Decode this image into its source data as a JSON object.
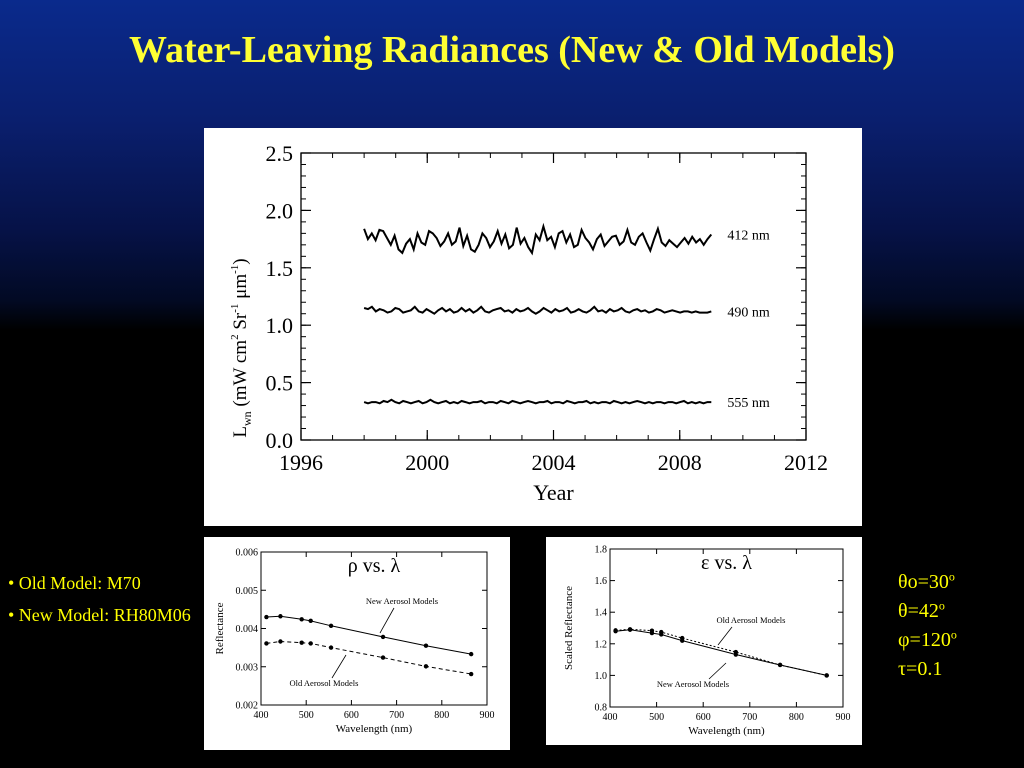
{
  "slide": {
    "title": "Water-Leaving Radiances (New & Old Models)",
    "notes": [
      "• Old Model: M70",
      "• New Model: RH80M06"
    ],
    "params": [
      {
        "text": "θo=30",
        "sup": "o"
      },
      {
        "text": "θ=42",
        "sup": "o"
      },
      {
        "text": "φ=120",
        "sup": "o"
      },
      {
        "text": "τ=0.1",
        "sup": ""
      }
    ]
  },
  "colors": {
    "title": "#ffff33",
    "text": "#ffff00",
    "background_top": "#0a2a8c",
    "background_bottom": "#000000"
  },
  "chart_data": [
    {
      "type": "line",
      "xlabel": "Year",
      "ylabel_parts": {
        "L": "L",
        "sub": "wn",
        "unit_a": " (mW cm",
        "unit_b": " Sr",
        "unit_c": " μm",
        "close": ")",
        "exp2": "2",
        "expm1a": "-1",
        "expm1b": "-1"
      },
      "xlim": [
        1996,
        2012
      ],
      "ylim": [
        0.0,
        2.5
      ],
      "xticks": [
        "1996",
        "2000",
        "2004",
        "2008",
        "2012"
      ],
      "yticks": [
        "0.0",
        "0.5",
        "1.0",
        "1.5",
        "2.0",
        "2.5"
      ],
      "series": [
        {
          "name": "412 nm",
          "x_start": 1998.0,
          "x_end": 2009.0,
          "values": [
            1.84,
            1.75,
            1.8,
            1.74,
            1.83,
            1.82,
            1.76,
            1.7,
            1.78,
            1.66,
            1.63,
            1.71,
            1.75,
            1.66,
            1.8,
            1.72,
            1.7,
            1.82,
            1.8,
            1.76,
            1.69,
            1.73,
            1.8,
            1.7,
            1.73,
            1.85,
            1.69,
            1.78,
            1.66,
            1.64,
            1.7,
            1.8,
            1.76,
            1.68,
            1.73,
            1.82,
            1.71,
            1.79,
            1.67,
            1.7,
            1.85,
            1.71,
            1.76,
            1.68,
            1.63,
            1.79,
            1.74,
            1.86,
            1.74,
            1.77,
            1.68,
            1.8,
            1.82,
            1.72,
            1.79,
            1.68,
            1.7,
            1.83,
            1.76,
            1.72,
            1.66,
            1.75,
            1.79,
            1.69,
            1.73,
            1.77,
            1.78,
            1.7,
            1.73,
            1.83,
            1.72,
            1.7,
            1.77,
            1.8,
            1.72,
            1.65,
            1.75,
            1.84,
            1.72,
            1.69,
            1.74,
            1.71,
            1.68,
            1.72,
            1.76,
            1.71,
            1.77,
            1.72,
            1.75,
            1.7,
            1.75,
            1.79
          ]
        },
        {
          "name": "490 nm",
          "x_start": 1998.0,
          "x_end": 2009.0,
          "values": [
            1.15,
            1.14,
            1.16,
            1.12,
            1.14,
            1.13,
            1.11,
            1.12,
            1.15,
            1.14,
            1.11,
            1.12,
            1.13,
            1.16,
            1.12,
            1.11,
            1.14,
            1.12,
            1.1,
            1.13,
            1.15,
            1.12,
            1.14,
            1.11,
            1.12,
            1.15,
            1.12,
            1.14,
            1.11,
            1.13,
            1.16,
            1.12,
            1.11,
            1.13,
            1.14,
            1.15,
            1.12,
            1.13,
            1.11,
            1.14,
            1.12,
            1.13,
            1.15,
            1.12,
            1.1,
            1.12,
            1.15,
            1.13,
            1.11,
            1.14,
            1.12,
            1.13,
            1.15,
            1.11,
            1.12,
            1.14,
            1.12,
            1.11,
            1.13,
            1.16,
            1.12,
            1.13,
            1.11,
            1.14,
            1.12,
            1.13,
            1.15,
            1.12,
            1.11,
            1.13,
            1.14,
            1.12,
            1.13,
            1.11,
            1.12,
            1.14,
            1.13,
            1.11,
            1.12,
            1.13,
            1.12,
            1.11,
            1.12,
            1.12,
            1.11,
            1.12,
            1.11,
            1.11,
            1.11,
            1.12
          ]
        },
        {
          "name": "555 nm",
          "x_start": 1998.0,
          "x_end": 2009.0,
          "values": [
            0.33,
            0.32,
            0.33,
            0.33,
            0.32,
            0.34,
            0.33,
            0.35,
            0.33,
            0.32,
            0.34,
            0.33,
            0.32,
            0.33,
            0.34,
            0.32,
            0.33,
            0.35,
            0.33,
            0.32,
            0.33,
            0.34,
            0.32,
            0.33,
            0.32,
            0.34,
            0.33,
            0.32,
            0.33,
            0.33,
            0.34,
            0.32,
            0.33,
            0.33,
            0.32,
            0.34,
            0.33,
            0.32,
            0.34,
            0.33,
            0.32,
            0.33,
            0.34,
            0.33,
            0.32,
            0.33,
            0.33,
            0.34,
            0.32,
            0.33,
            0.33,
            0.32,
            0.34,
            0.33,
            0.32,
            0.33,
            0.33,
            0.34,
            0.32,
            0.33,
            0.32,
            0.33,
            0.33,
            0.32,
            0.34,
            0.33,
            0.32,
            0.33,
            0.32,
            0.33,
            0.34,
            0.33,
            0.32,
            0.33,
            0.32,
            0.33,
            0.33,
            0.32,
            0.33,
            0.33,
            0.32,
            0.33,
            0.34,
            0.32,
            0.33,
            0.32,
            0.33,
            0.32,
            0.33,
            0.33
          ]
        }
      ]
    },
    {
      "type": "line",
      "title": "ρ vs. λ",
      "xlabel": "Wavelength (nm)",
      "ylabel": "Reflectance",
      "xlim": [
        400,
        900
      ],
      "ylim": [
        0.002,
        0.006
      ],
      "xticks": [
        "400",
        "500",
        "600",
        "700",
        "800",
        "900"
      ],
      "yticks": [
        "0.002",
        "0.003",
        "0.004",
        "0.005",
        "0.006"
      ],
      "annotations": [
        "New Aerosol Models",
        "Old Aerosol Models"
      ],
      "x": [
        412,
        443,
        490,
        510,
        555,
        670,
        765,
        865
      ],
      "series": [
        {
          "name": "New Aerosol Models",
          "values": [
            0.0043,
            0.00432,
            0.00424,
            0.0042,
            0.00407,
            0.00378,
            0.00355,
            0.00333
          ],
          "dash": false
        },
        {
          "name": "Old Aerosol Models",
          "values": [
            0.00361,
            0.00366,
            0.00363,
            0.00361,
            0.0035,
            0.00324,
            0.00301,
            0.00281
          ],
          "dash": true
        }
      ]
    },
    {
      "type": "line",
      "title": "ε vs. λ",
      "xlabel": "Wavelength (nm)",
      "ylabel": "Scaled Reflectance",
      "xlim": [
        400,
        900
      ],
      "ylim": [
        0.8,
        1.8
      ],
      "xticks": [
        "400",
        "500",
        "600",
        "700",
        "800",
        "900"
      ],
      "yticks": [
        "0.8",
        "1.0",
        "1.2",
        "1.4",
        "1.6",
        "1.8"
      ],
      "annotations": [
        "Old Aerosol Models",
        "New Aerosol Models"
      ],
      "x": [
        412,
        443,
        490,
        510,
        555,
        670,
        765,
        865
      ],
      "series": [
        {
          "name": "Old Aerosol Models",
          "values": [
            1.285,
            1.292,
            1.283,
            1.274,
            1.236,
            1.148,
            1.066,
            1.0
          ],
          "dash": true
        },
        {
          "name": "New Aerosol Models",
          "values": [
            1.28,
            1.289,
            1.268,
            1.259,
            1.22,
            1.132,
            1.066,
            1.0
          ],
          "dash": false
        }
      ]
    }
  ]
}
